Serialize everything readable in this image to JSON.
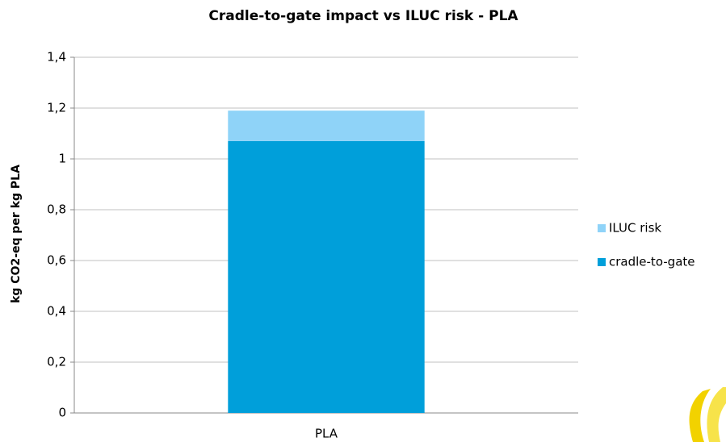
{
  "chart_data": {
    "type": "stacked_bar",
    "title": "Cradle-to-gate impact vs ILUC risk - PLA",
    "y_label": "kg CO2-eq per kg PLA",
    "categories": [
      "PLA"
    ],
    "series": [
      {
        "name": "cradle-to-gate",
        "color": "#009fda",
        "values": [
          1.07
        ]
      },
      {
        "name": "ILUC risk",
        "color": "#8fd3f8",
        "values": [
          0.12
        ]
      }
    ],
    "ylim": [
      0,
      1.4
    ],
    "yticks": [
      0,
      {
        "value": 0.2,
        "label": "0,2"
      },
      {
        "value": 0.4,
        "label": "0,4"
      },
      {
        "value": 0.6,
        "label": "0,6"
      },
      {
        "value": 0.8,
        "label": "0,8"
      },
      1,
      {
        "value": 1.2,
        "label": "1,2"
      },
      {
        "value": 1.4,
        "label": "1,4"
      }
    ],
    "grid": true,
    "legend": "right"
  }
}
